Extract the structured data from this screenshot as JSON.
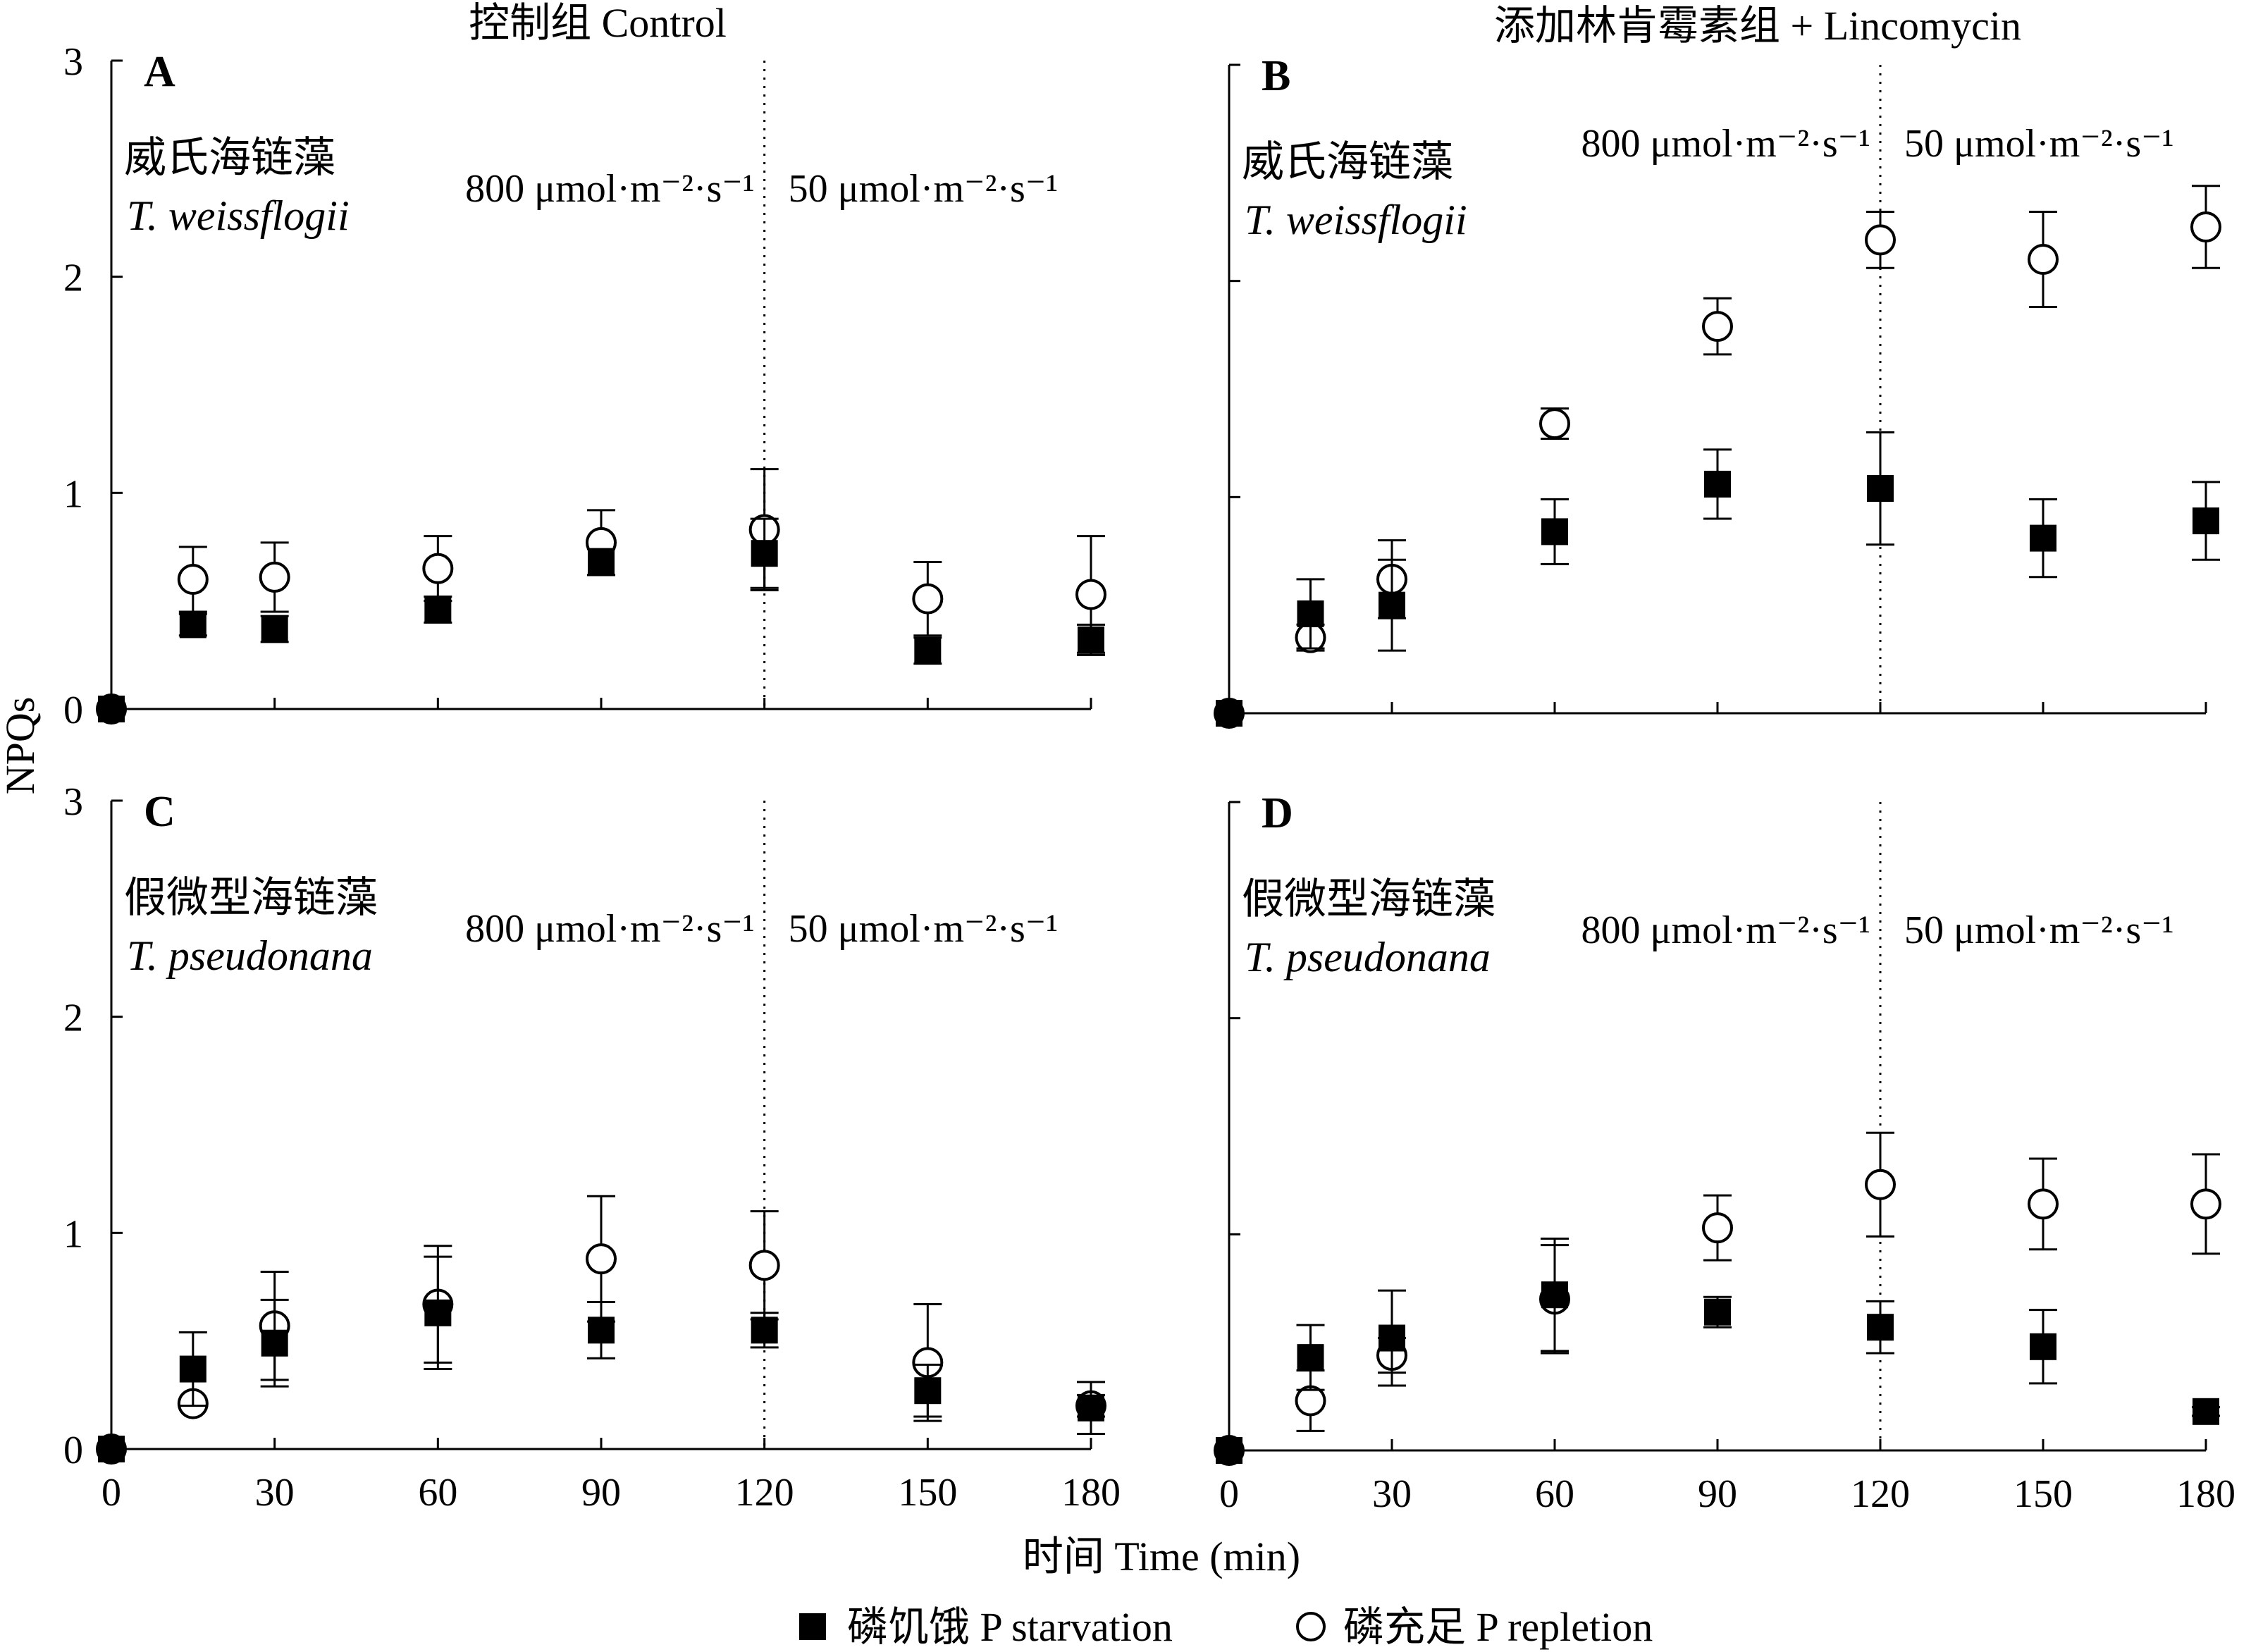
{
  "figure": {
    "group_titles": [
      "控制组 Control",
      "添加林肯霉素组 + Lincomycin"
    ],
    "ylabel": "NPQs",
    "xlabel": "时间 Time (min)",
    "legend": [
      {
        "label": "磷饥饿 P starvation",
        "marker": "filled-square"
      },
      {
        "label": "磷充足 P repletion",
        "marker": "open-circle"
      }
    ]
  },
  "chart_data": [
    {
      "type": "scatter",
      "panel": "A",
      "species_cn": "威氏海链藻",
      "species_latin": "T. weissflogii",
      "light_labels": {
        "high": "800 μmol·m⁻²·s⁻¹",
        "low": "50 μmol·m⁻²·s⁻¹"
      },
      "divider_x": 120,
      "xlim": [
        0,
        180
      ],
      "ylim": [
        0,
        3
      ],
      "xticks": [
        0,
        30,
        60,
        90,
        120,
        150,
        180
      ],
      "yticks": [
        0,
        1,
        2,
        3
      ],
      "series": [
        {
          "name": "磷饥饿 P starvation",
          "marker": "square",
          "x": [
            0,
            15,
            30,
            60,
            90,
            120,
            150,
            180
          ],
          "y": [
            0,
            0.39,
            0.37,
            0.46,
            0.68,
            0.72,
            0.27,
            0.32
          ],
          "err": [
            0,
            0.05,
            0.06,
            0.06,
            0.06,
            0.16,
            0.06,
            0.07
          ]
        },
        {
          "name": "磷充足 P repletion",
          "marker": "circle",
          "x": [
            0,
            15,
            30,
            60,
            90,
            120,
            150,
            180
          ],
          "y": [
            0,
            0.6,
            0.61,
            0.65,
            0.77,
            0.83,
            0.51,
            0.53
          ],
          "err": [
            0,
            0.15,
            0.16,
            0.15,
            0.15,
            0.28,
            0.17,
            0.27
          ]
        }
      ]
    },
    {
      "type": "scatter",
      "panel": "B",
      "species_cn": "威氏海链藻",
      "species_latin": "T. weissflogii",
      "light_labels": {
        "high": "800 μmol·m⁻²·s⁻¹",
        "low": "50 μmol·m⁻²·s⁻¹"
      },
      "divider_x": 120,
      "xlim": [
        0,
        180
      ],
      "ylim": [
        0,
        3
      ],
      "xticks": [
        0,
        30,
        60,
        90,
        120,
        150,
        180
      ],
      "yticks": [
        0,
        1,
        2,
        3
      ],
      "series": [
        {
          "name": "磷饥饿 P starvation",
          "marker": "square",
          "x": [
            0,
            15,
            30,
            60,
            90,
            120,
            150,
            180
          ],
          "y": [
            0,
            0.46,
            0.5,
            0.84,
            1.06,
            1.04,
            0.81,
            0.89
          ],
          "err": [
            0,
            0.16,
            0.21,
            0.15,
            0.16,
            0.26,
            0.18,
            0.18
          ]
        },
        {
          "name": "磷充足 P repletion",
          "marker": "circle",
          "x": [
            0,
            15,
            30,
            60,
            90,
            120,
            150,
            180
          ],
          "y": [
            0,
            0.35,
            0.62,
            1.34,
            1.79,
            2.19,
            2.1,
            2.25
          ],
          "err": [
            0,
            0.06,
            0.18,
            0.07,
            0.13,
            0.13,
            0.22,
            0.19
          ]
        }
      ]
    },
    {
      "type": "scatter",
      "panel": "C",
      "species_cn": "假微型海链藻",
      "species_latin": "T. pseudonana",
      "light_labels": {
        "high": "800 μmol·m⁻²·s⁻¹",
        "low": "50 μmol·m⁻²·s⁻¹"
      },
      "divider_x": 120,
      "xlim": [
        0,
        180
      ],
      "ylim": [
        0,
        3
      ],
      "xticks": [
        0,
        30,
        60,
        90,
        120,
        150,
        180
      ],
      "yticks": [
        0,
        1,
        2,
        3
      ],
      "series": [
        {
          "name": "磷饥饿 P starvation",
          "marker": "square",
          "x": [
            0,
            15,
            30,
            60,
            90,
            120,
            150,
            180
          ],
          "y": [
            0,
            0.37,
            0.49,
            0.63,
            0.55,
            0.55,
            0.27,
            0.19
          ],
          "err": [
            0,
            0.17,
            0.2,
            0.26,
            0.13,
            0.08,
            0.12,
            0.12
          ]
        },
        {
          "name": "磷充足 P repletion",
          "marker": "circle",
          "x": [
            0,
            15,
            30,
            60,
            90,
            120,
            150,
            180
          ],
          "y": [
            0,
            0.21,
            0.57,
            0.67,
            0.88,
            0.85,
            0.4,
            0.2
          ],
          "err": [
            0,
            0.02,
            0.25,
            0.27,
            0.29,
            0.25,
            0.27,
            0.05
          ]
        }
      ]
    },
    {
      "type": "scatter",
      "panel": "D",
      "species_cn": "假微型海链藻",
      "species_latin": "T. pseudonana",
      "light_labels": {
        "high": "800 μmol·m⁻²·s⁻¹",
        "low": "50 μmol·m⁻²·s⁻¹"
      },
      "divider_x": 120,
      "xlim": [
        0,
        180
      ],
      "ylim": [
        0,
        3
      ],
      "xticks": [
        0,
        30,
        60,
        90,
        120,
        150,
        180
      ],
      "yticks": [
        0,
        1,
        2,
        3
      ],
      "series": [
        {
          "name": "磷饥饿 P starvation",
          "marker": "square",
          "x": [
            0,
            15,
            30,
            60,
            90,
            120,
            150,
            180
          ],
          "y": [
            0,
            0.43,
            0.52,
            0.72,
            0.64,
            0.57,
            0.48,
            0.18
          ],
          "err": [
            0,
            0.15,
            0.22,
            0.26,
            0.07,
            0.12,
            0.17,
            0.02
          ]
        },
        {
          "name": "磷充足 P repletion",
          "marker": "circle",
          "x": [
            0,
            15,
            30,
            60,
            90,
            120,
            150,
            180
          ],
          "y": [
            0,
            0.23,
            0.44,
            0.7,
            1.03,
            1.23,
            1.14,
            1.14
          ],
          "err": [
            0,
            0.14,
            0.08,
            0.25,
            0.15,
            0.24,
            0.21,
            0.23
          ]
        }
      ]
    }
  ]
}
